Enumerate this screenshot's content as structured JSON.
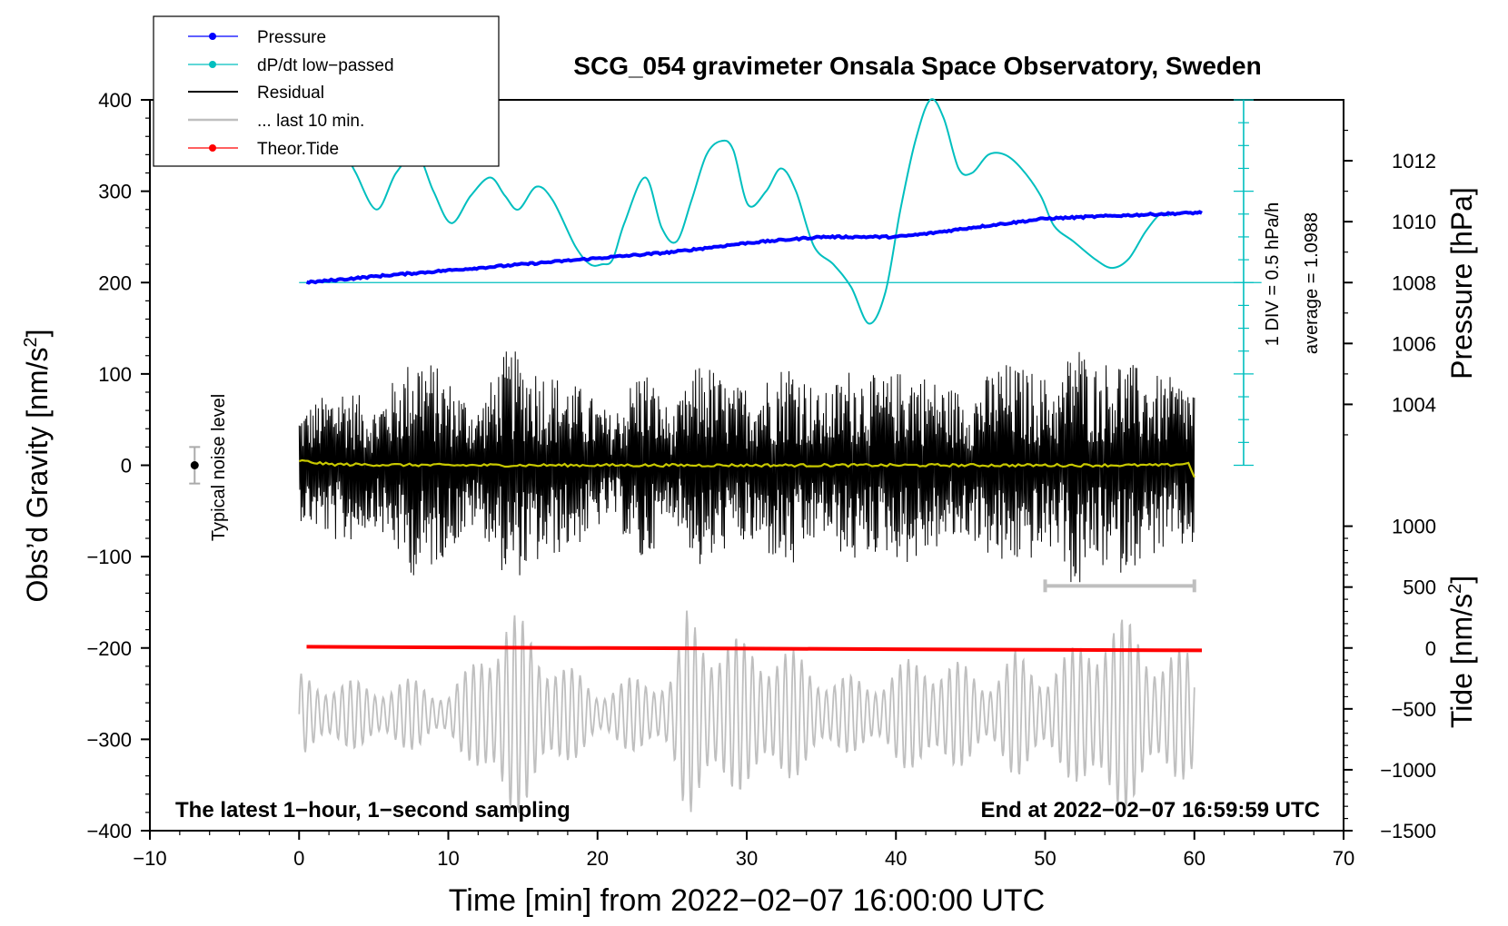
{
  "chart_data": {
    "type": "line",
    "title": "SCG_054 gravimeter Onsala Space Observatory, Sweden",
    "xlabel": "Time [min] from 2022−02−07 16:00:00 UTC",
    "ylabel": "Obs’d Gravity [nm/s",
    "ylabel_sup": "2",
    "ylabel_end": "]",
    "xlim": [
      -10,
      70
    ],
    "ylim": [
      -400,
      400
    ],
    "x_ticks": [
      -10,
      0,
      10,
      20,
      30,
      40,
      50,
      60,
      70
    ],
    "x_tick_labels": [
      "−10",
      "0",
      "10",
      "20",
      "30",
      "40",
      "50",
      "60",
      "70"
    ],
    "y_ticks": [
      -400,
      -300,
      -200,
      -100,
      0,
      100,
      200,
      300,
      400
    ],
    "y_tick_labels": [
      "−400",
      "−300",
      "−200",
      "−100",
      "0",
      "100",
      "200",
      "300",
      "400"
    ],
    "pressure_axis": {
      "label": "Pressure [hPa]",
      "ticks": [
        1004,
        1006,
        1008,
        1010,
        1012
      ],
      "tick_labels": [
        "1004",
        "1006",
        "1008",
        "1010",
        "1012"
      ],
      "range": [
        1002,
        1014
      ]
    },
    "tide_axis": {
      "label": "Tide [nm/s",
      "label_sup": "2",
      "label_end": "]",
      "ticks": [
        -1500,
        -1000,
        -500,
        0,
        500,
        1000
      ],
      "tick_labels": [
        "−1500",
        "−1000",
        "−500",
        "0",
        "500",
        "1000"
      ]
    },
    "noise_label": "Typical noise level",
    "dpdt_scale_label": "1 DIV = 0.5 hPa/h",
    "dpdt_average_label": "average = 1.0988",
    "left_note": "The latest 1−hour, 1−second sampling",
    "right_note": "End at 2022−02−07 16:59:59 UTC",
    "legend": [
      {
        "name": "Pressure",
        "color": "#0000ff",
        "marker": true
      },
      {
        "name": "dP/dt low−passed",
        "color": "#00bfbf",
        "marker": true
      },
      {
        "name": "Residual",
        "color": "#000000",
        "marker": false
      },
      {
        "name": "... last 10 min.",
        "color": "#bfbfbf",
        "marker": false
      },
      {
        "name": "Theor.Tide",
        "color": "#ff0000",
        "marker": true
      }
    ],
    "series": [
      {
        "name": "Pressure",
        "color": "#0000ff",
        "axis": "pressure",
        "x": [
          0.5,
          5,
          10,
          15,
          20,
          25,
          30,
          35,
          38,
          40,
          42,
          45,
          50,
          55,
          60.5
        ],
        "values": [
          1008.0,
          1008.2,
          1008.4,
          1008.6,
          1008.8,
          1009.0,
          1009.3,
          1009.5,
          1009.5,
          1009.5,
          1009.6,
          1009.8,
          1010.1,
          1010.2,
          1010.3
        ]
      },
      {
        "name": "dP/dt low−passed",
        "color": "#00bfbf",
        "axis": "gravity",
        "x": [
          3,
          3.8,
          5.2,
          6.5,
          7.9,
          9,
          10.2,
          11.5,
          12.8,
          13.8,
          14.7,
          15.9,
          17,
          18.5,
          19.5,
          20.3,
          21,
          21.8,
          23.2,
          24.3,
          25.3,
          26.3,
          27.3,
          28.3,
          29.1,
          30.1,
          31.3,
          32.3,
          33.3,
          34.5,
          35.8,
          37,
          38.2,
          39.3,
          40.3,
          41.3,
          42.3,
          43.2,
          44.2,
          45.1,
          46.2,
          47.3,
          48.4,
          49.7,
          50.6,
          51.9,
          53.4,
          54.5,
          55.6,
          56.7,
          57.7,
          58.3
        ],
        "values": [
          345,
          320,
          280,
          320,
          340,
          300,
          265,
          295,
          315,
          295,
          280,
          305,
          290,
          240,
          220,
          220,
          225,
          265,
          315,
          260,
          245,
          290,
          340,
          355,
          345,
          285,
          300,
          325,
          300,
          240,
          220,
          195,
          155,
          190,
          280,
          355,
          400,
          380,
          325,
          320,
          340,
          340,
          325,
          295,
          262,
          245,
          225,
          216,
          226,
          255,
          275,
          273
        ]
      },
      {
        "name": "Residual",
        "color": "#000000",
        "axis": "gravity",
        "x_start": 0,
        "x_end": 60,
        "amplitude_range": [
          -150,
          165
        ],
        "envelope_x": [
          0,
          3,
          5,
          8,
          10,
          12,
          14,
          16,
          19,
          21,
          23,
          25,
          27,
          29,
          31,
          33,
          35,
          37,
          39,
          41,
          43,
          45,
          47,
          49,
          51,
          52,
          53,
          55,
          57,
          59,
          60
        ],
        "envelope_values": [
          60,
          90,
          65,
          130,
          95,
          65,
          130,
          110,
          85,
          55,
          115,
          55,
          120,
          85,
          95,
          120,
          75,
          110,
          95,
          110,
          90,
          80,
          115,
          105,
          90,
          150,
          110,
          120,
          100,
          95,
          90
        ]
      },
      {
        "name": "Residual mean",
        "color": "#c8c800",
        "axis": "gravity",
        "x": [
          0,
          2,
          10,
          20,
          30,
          40,
          50,
          58,
          59.6,
          60
        ],
        "values": [
          5,
          1,
          0,
          0,
          0,
          0,
          0,
          0,
          2,
          -12
        ]
      },
      {
        "name": "... last 10 min.",
        "color": "#bfbfbf",
        "axis": "gravity_zoom",
        "x_start": 0,
        "x_end": 60,
        "y_range": [
          -400,
          -145
        ],
        "bracket_minutes": [
          50,
          60
        ],
        "envelope_x": [
          0,
          5,
          8,
          10,
          11.5,
          12.5,
          14,
          16,
          18,
          20,
          22,
          25,
          26,
          28,
          30,
          32,
          34,
          36,
          38,
          40,
          42,
          44,
          46,
          48,
          50,
          52,
          54,
          56,
          58,
          60
        ],
        "envelope_values": [
          45,
          35,
          40,
          25,
          55,
          95,
          120,
          90,
          55,
          30,
          40,
          50,
          115,
          100,
          80,
          85,
          60,
          45,
          40,
          55,
          70,
          60,
          45,
          70,
          55,
          75,
          120,
          100,
          75,
          70
        ]
      },
      {
        "name": "Theor.Tide",
        "color": "#ff0000",
        "axis": "tide",
        "x": [
          0.5,
          10,
          20,
          30,
          40,
          50,
          60.5
        ],
        "values": [
          10,
          5,
          0,
          -5,
          -10,
          -15,
          -20
        ]
      }
    ],
    "noise_bar": {
      "x": -7,
      "y": 0,
      "err": 20
    }
  }
}
